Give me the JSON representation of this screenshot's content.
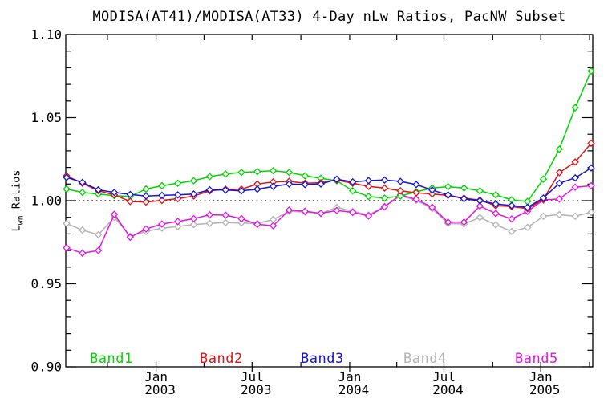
{
  "figure": {
    "background": "#ffffff",
    "axis_color": "#000000"
  },
  "chart_data": {
    "type": "line",
    "title": "MODISA(AT41)/MODISA(AT33) 4-Day nLw Ratios, PacNW Subset",
    "ylabel": {
      "main": "L",
      "sub": "wn",
      "rest": " Ratios"
    },
    "ylim": [
      0.9,
      1.1
    ],
    "y_major_ticks": [
      0.9,
      0.95,
      1.0,
      1.05,
      1.1
    ],
    "y_tick_labels": [
      "0.90",
      "0.95",
      "1.00",
      "1.05",
      "1.10"
    ],
    "y_minor_step": 0.01,
    "reference_line": 1.0,
    "grid": false,
    "legend_position": "inside-bottom",
    "n_points": 34,
    "x_major_ticks": [
      {
        "month": "Jan",
        "year": "2003",
        "pos": 5.63
      },
      {
        "month": "Jul",
        "year": "2003",
        "pos": 11.67
      },
      {
        "month": "Jan",
        "year": "2004",
        "pos": 17.81
      },
      {
        "month": "Jul",
        "year": "2004",
        "pos": 23.74
      },
      {
        "month": "Jan",
        "year": "2005",
        "pos": 29.83
      }
    ],
    "x_quarter_ticks": [
      2.57,
      8.65,
      14.74,
      20.77,
      26.81,
      32.9
    ],
    "series": [
      {
        "name": "Band1",
        "color": "#00d400",
        "values": [
          1.007,
          1.005,
          1.004,
          1.003,
          1.0025,
          1.007,
          1.009,
          1.0105,
          1.012,
          1.0145,
          1.016,
          1.017,
          1.0175,
          1.018,
          1.017,
          1.015,
          1.0135,
          1.012,
          1.006,
          1.0025,
          1.0015,
          1.0028,
          1.0053,
          1.0076,
          1.0084,
          1.0076,
          1.0059,
          1.0035,
          1.0005,
          0.9995,
          1.013,
          1.031,
          1.056,
          1.078
        ]
      },
      {
        "name": "Band2",
        "color": "#dc1414",
        "values": [
          1.015,
          1.0105,
          1.006,
          1.0035,
          0.9995,
          0.9992,
          1.0002,
          1.0012,
          1.0028,
          1.0059,
          1.0069,
          1.0069,
          1.01,
          1.0113,
          1.0116,
          1.0105,
          1.0108,
          1.0124,
          1.0105,
          1.0086,
          1.0076,
          1.0059,
          1.0048,
          1.004,
          1.0032,
          1.0016,
          1.0003,
          0.997,
          0.9965,
          0.9952,
          1.0008,
          1.0169,
          1.0233,
          1.0346
        ]
      },
      {
        "name": "Band3",
        "color": "#1414d2",
        "values": [
          1.014,
          1.011,
          1.0065,
          1.005,
          1.0037,
          1.0028,
          1.0032,
          1.0035,
          1.004,
          1.0065,
          1.0064,
          1.0059,
          1.0069,
          1.0086,
          1.01,
          1.0097,
          1.01,
          1.0129,
          1.0113,
          1.0121,
          1.0124,
          1.0116,
          1.0097,
          1.0064,
          1.0035,
          1.0011,
          1.0,
          0.998,
          0.9971,
          0.996,
          1.0016,
          1.0105,
          1.0137,
          1.0197
        ]
      },
      {
        "name": "Band4",
        "color": "#b2b2b2",
        "values": [
          0.9863,
          0.9823,
          0.9795,
          0.99,
          0.9786,
          0.9815,
          0.9835,
          0.9845,
          0.9856,
          0.9864,
          0.9868,
          0.9866,
          0.9863,
          0.9887,
          0.9936,
          0.9932,
          0.9923,
          0.996,
          0.9936,
          0.9914,
          0.9966,
          1.0028,
          1.0003,
          0.9952,
          0.9863,
          0.986,
          0.9899,
          0.9855,
          0.9815,
          0.9839,
          0.9907,
          0.9916,
          0.9907,
          0.993
        ]
      },
      {
        "name": "Band5",
        "color": "#e414e4",
        "values": [
          0.9716,
          0.9684,
          0.97,
          0.9918,
          0.978,
          0.983,
          0.986,
          0.9875,
          0.9892,
          0.9915,
          0.9913,
          0.9892,
          0.9858,
          0.985,
          0.9944,
          0.9936,
          0.9924,
          0.9941,
          0.993,
          0.9908,
          0.9963,
          1.0035,
          1.0008,
          0.996,
          0.9871,
          0.9871,
          0.9968,
          0.9923,
          0.989,
          0.9936,
          1.0005,
          1.001,
          1.0081,
          1.009
        ]
      }
    ]
  }
}
